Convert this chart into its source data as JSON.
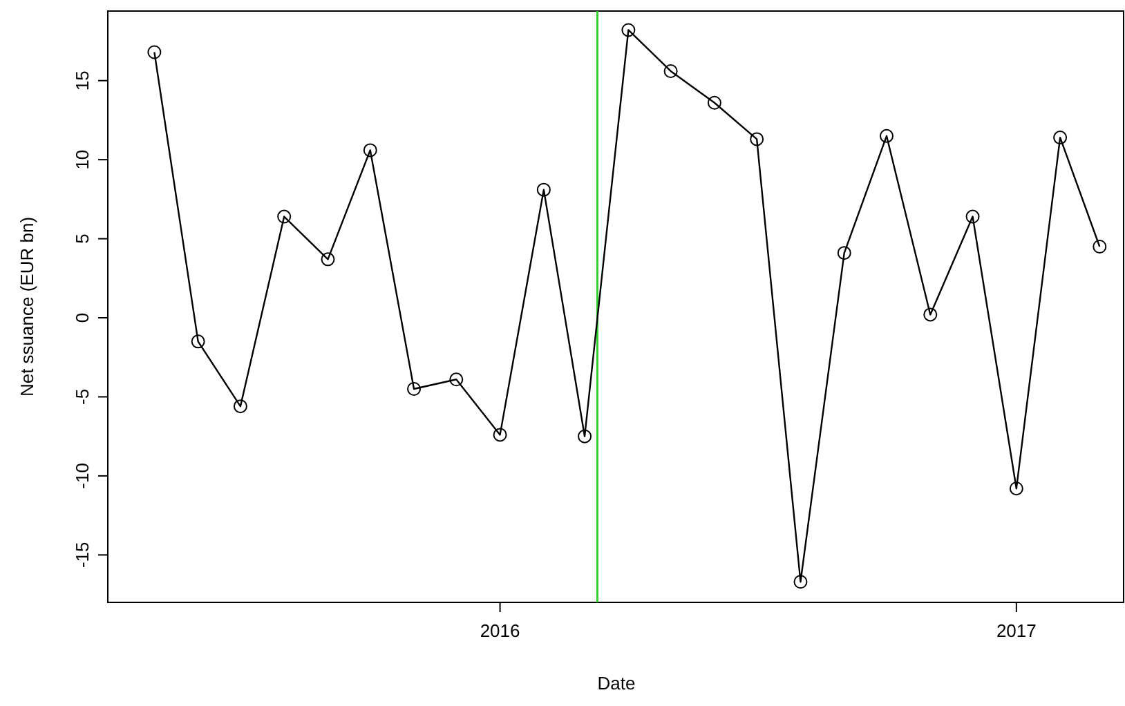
{
  "chart_data": {
    "type": "line",
    "xlabel": "Date",
    "ylabel": "Net ssuance (EUR bn)",
    "x": [
      "2015-05-01",
      "2015-06-01",
      "2015-07-01",
      "2015-08-01",
      "2015-09-01",
      "2015-10-01",
      "2015-11-01",
      "2015-12-01",
      "2016-01-01",
      "2016-02-01",
      "2016-03-01",
      "2016-04-01",
      "2016-05-01",
      "2016-06-01",
      "2016-07-01",
      "2016-08-01",
      "2016-09-01",
      "2016-10-01",
      "2016-11-01",
      "2016-12-01",
      "2017-01-01",
      "2017-02-01",
      "2017-03-01"
    ],
    "series": [
      {
        "color": "#000000",
        "values": [
          16.8,
          -1.5,
          -5.6,
          6.4,
          3.7,
          10.6,
          -4.5,
          -3.9,
          -7.4,
          8.1,
          -7.5,
          18.2,
          15.6,
          13.6,
          11.3,
          -16.7,
          4.1,
          11.5,
          0.2,
          6.4,
          -10.8,
          11.4,
          4.5
        ]
      }
    ],
    "xlim": [
      "2015-03-29",
      "2017-03-18"
    ],
    "xticks": [
      {
        "value": "2016-01-01",
        "label": "2016"
      },
      {
        "value": "2017-01-01",
        "label": "2017"
      }
    ],
    "ylim": [
      -18,
      19.4
    ],
    "yticks": [
      -15,
      -10,
      -5,
      0,
      5,
      10,
      15
    ],
    "ref_lines": [
      {
        "axis": "x",
        "value": "2016-03-10",
        "color": "#33cc33"
      }
    ],
    "marker": "circle",
    "line_style": "solid"
  }
}
